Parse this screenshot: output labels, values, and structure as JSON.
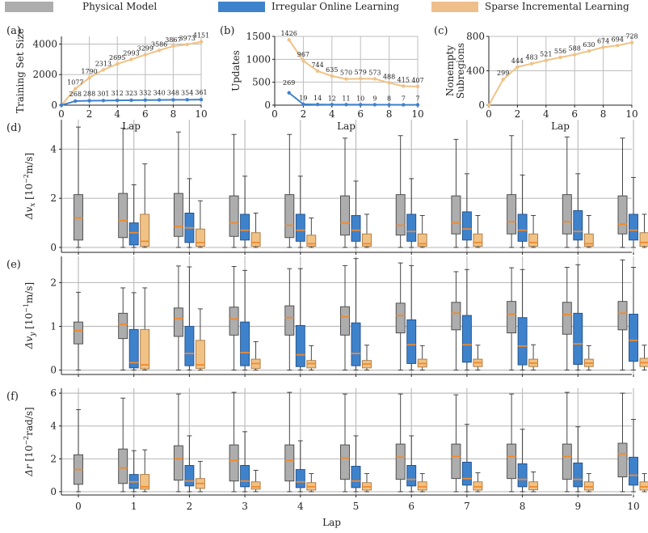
{
  "legend": [
    {
      "label": "Physical Model",
      "color": "#adadad",
      "border": "#555555"
    },
    {
      "label": "Irregular Online Learning",
      "color": "#3f82cc",
      "border": "#2a5a90"
    },
    {
      "label": "Sparse Incremental Learning",
      "color": "#eebf8a",
      "border": "#b98650"
    }
  ],
  "colors": {
    "blue": "#3f82cc",
    "orange": "#f0c286",
    "median": "#f08a2c",
    "grid": "#bdbdbd"
  },
  "chart_data": [
    {
      "id": "a",
      "type": "line",
      "panel_label": "(a)",
      "xlabel": "Lap",
      "ylabel": "Training Set Size",
      "xlim": [
        0,
        10
      ],
      "ylim": [
        0,
        4500
      ],
      "xticks": [
        0,
        2,
        4,
        6,
        8,
        10
      ],
      "yticks": [
        0,
        2000,
        4000
      ],
      "series": [
        {
          "name": "Sparse Incremental Learning",
          "color": "orange",
          "x": [
            0,
            1,
            2,
            3,
            4,
            5,
            6,
            7,
            8,
            9,
            10
          ],
          "values": [
            0,
            1077,
            1790,
            2313,
            2695,
            2993,
            3299,
            3586,
            3867,
            3973,
            4151
          ],
          "labels": [
            "",
            "1077",
            "1790",
            "2313",
            "2695",
            "2993",
            "3299",
            "3586",
            "3867",
            "3973",
            "4151"
          ]
        },
        {
          "name": "Irregular Online Learning",
          "color": "blue",
          "x": [
            0,
            1,
            2,
            3,
            4,
            5,
            6,
            7,
            8,
            9,
            10
          ],
          "values": [
            0,
            268,
            288,
            301,
            312,
            323,
            332,
            340,
            348,
            354,
            361
          ],
          "labels": [
            "",
            "268",
            "288",
            "301",
            "312",
            "323",
            "332",
            "340",
            "348",
            "354",
            "361"
          ]
        }
      ]
    },
    {
      "id": "b",
      "type": "line",
      "panel_label": "(b)",
      "xlabel": "Lap",
      "ylabel": "Updates",
      "xlim": [
        0,
        10
      ],
      "ylim": [
        0,
        1500
      ],
      "xticks": [
        0,
        2,
        4,
        6,
        8,
        10
      ],
      "yticks": [
        0,
        500,
        1000,
        1500
      ],
      "series": [
        {
          "name": "Sparse Incremental Learning",
          "color": "orange",
          "x": [
            1,
            2,
            3,
            4,
            5,
            6,
            7,
            8,
            9,
            10
          ],
          "values": [
            1426,
            967,
            744,
            635,
            570,
            579,
            573,
            488,
            415,
            407
          ],
          "labels": [
            "1426",
            "967",
            "744",
            "635",
            "570",
            "579",
            "573",
            "488",
            "415",
            "407"
          ]
        },
        {
          "name": "Irregular Online Learning",
          "color": "blue",
          "x": [
            1,
            2,
            3,
            4,
            5,
            6,
            7,
            8,
            9,
            10
          ],
          "values": [
            269,
            19,
            14,
            12,
            11,
            10,
            9,
            8,
            7,
            7
          ],
          "labels": [
            "269",
            "19",
            "14",
            "12",
            "11",
            "10",
            "9",
            "8",
            "7",
            "7"
          ]
        }
      ]
    },
    {
      "id": "c",
      "type": "line",
      "panel_label": "(c)",
      "xlabel": "Lap",
      "ylabel": "Nonempty Subregions",
      "xlim": [
        0,
        10
      ],
      "ylim": [
        0,
        800
      ],
      "xticks": [
        0,
        2,
        4,
        6,
        8,
        10
      ],
      "yticks": [
        0,
        400,
        800
      ],
      "series": [
        {
          "name": "Sparse Incremental Learning",
          "color": "orange",
          "x": [
            0,
            1,
            2,
            3,
            4,
            5,
            6,
            7,
            8,
            9,
            10
          ],
          "values": [
            0,
            299,
            444,
            483,
            521,
            556,
            588,
            630,
            674,
            694,
            728
          ],
          "labels": [
            "",
            "299",
            "444",
            "483",
            "521",
            "556",
            "588",
            "630",
            "674",
            "694",
            "728"
          ]
        }
      ]
    },
    {
      "id": "d",
      "type": "box",
      "panel_label": "(d)",
      "ylabel": "Δv_x [10^-2 m/s]",
      "ylabel_main": "Δv",
      "ylabel_sub": "x",
      "ylabel_unit": "[10",
      "ylabel_exp": "−2",
      "ylabel_tail": "m/s]",
      "ylim": [
        -0.2,
        5.2
      ],
      "yticks": [
        0,
        2,
        4
      ],
      "categories": [
        "0",
        "1",
        "2",
        "3",
        "4",
        "5",
        "6",
        "7",
        "8",
        "9",
        "10"
      ],
      "series": [
        {
          "name": "Physical Model",
          "boxes": [
            [
              0,
              0.3,
              1.2,
              2.15,
              4.9
            ],
            [
              0,
              0.4,
              1.1,
              2.2,
              4.85
            ],
            [
              0,
              0.45,
              0.85,
              2.2,
              4.7
            ],
            [
              0,
              0.45,
              1.0,
              2.1,
              4.6
            ],
            [
              0,
              0.4,
              0.9,
              2.15,
              4.6
            ],
            [
              0,
              0.5,
              1.0,
              2.1,
              4.45
            ],
            [
              0,
              0.5,
              0.9,
              2.15,
              4.55
            ],
            [
              0,
              0.55,
              1.0,
              2.1,
              4.4
            ],
            [
              0,
              0.55,
              1.05,
              2.15,
              4.55
            ],
            [
              0,
              0.55,
              1.05,
              2.15,
              4.5
            ],
            [
              0,
              0.55,
              0.95,
              2.1,
              4.45
            ]
          ]
        },
        {
          "name": "Irregular Online Learning",
          "boxes": [
            null,
            [
              0,
              0.1,
              0.6,
              1.0,
              2.55
            ],
            [
              0,
              0.2,
              0.8,
              1.4,
              2.8
            ],
            [
              0,
              0.3,
              0.7,
              1.35,
              2.9
            ],
            [
              0,
              0.25,
              0.7,
              1.35,
              2.9
            ],
            [
              0,
              0.25,
              0.7,
              1.3,
              2.7
            ],
            [
              0,
              0.25,
              0.65,
              1.35,
              2.8
            ],
            [
              0,
              0.3,
              0.75,
              1.45,
              3.0
            ],
            [
              0,
              0.25,
              0.7,
              1.35,
              2.95
            ],
            [
              0,
              0.3,
              0.65,
              1.5,
              3.0
            ],
            [
              0,
              0.3,
              0.7,
              1.35,
              2.85
            ]
          ]
        },
        {
          "name": "Sparse Incremental Learning",
          "boxes": [
            null,
            [
              0,
              0.05,
              0.25,
              1.35,
              3.4
            ],
            [
              0,
              0.05,
              0.2,
              0.75,
              1.9
            ],
            [
              0,
              0.05,
              0.2,
              0.6,
              1.4
            ],
            [
              0,
              0.05,
              0.15,
              0.5,
              1.2
            ],
            [
              0,
              0.05,
              0.15,
              0.55,
              1.35
            ],
            [
              0,
              0.05,
              0.15,
              0.55,
              1.3
            ],
            [
              0,
              0.05,
              0.2,
              0.55,
              1.3
            ],
            [
              0,
              0.05,
              0.2,
              0.55,
              1.3
            ],
            [
              0,
              0.05,
              0.15,
              0.55,
              1.3
            ],
            [
              0,
              0.05,
              0.2,
              0.6,
              1.35
            ]
          ]
        }
      ]
    },
    {
      "id": "e",
      "type": "box",
      "panel_label": "(e)",
      "ylabel": "Δv_y [10^-1 m/s]",
      "ylabel_main": "Δv",
      "ylabel_sub": "y",
      "ylabel_unit": "[10",
      "ylabel_exp": "−1",
      "ylabel_tail": "m/s]",
      "ylim": [
        -0.1,
        2.6
      ],
      "yticks": [
        0,
        1,
        2
      ],
      "categories": [
        "0",
        "1",
        "2",
        "3",
        "4",
        "5",
        "6",
        "7",
        "8",
        "9",
        "10"
      ],
      "series": [
        {
          "name": "Physical Model",
          "boxes": [
            [
              0,
              0.6,
              0.9,
              1.1,
              1.78
            ],
            [
              0,
              0.72,
              1.05,
              1.3,
              1.88
            ],
            [
              0,
              0.77,
              1.18,
              1.42,
              2.38
            ],
            [
              0,
              0.8,
              1.17,
              1.44,
              2.37
            ],
            [
              0,
              0.8,
              1.2,
              1.47,
              2.32
            ],
            [
              0,
              0.8,
              1.22,
              1.45,
              2.39
            ],
            [
              0,
              0.85,
              1.25,
              1.53,
              2.45
            ],
            [
              0,
              0.92,
              1.3,
              1.55,
              2.25
            ],
            [
              0,
              0.85,
              1.28,
              1.57,
              2.34
            ],
            [
              0,
              0.82,
              1.27,
              1.55,
              2.35
            ],
            [
              0,
              0.92,
              1.3,
              1.57,
              2.52
            ]
          ]
        },
        {
          "name": "Irregular Online Learning",
          "boxes": [
            null,
            [
              0,
              0.05,
              0.17,
              0.93,
              1.77
            ],
            [
              0,
              0.1,
              0.38,
              1.0,
              2.36
            ],
            [
              0,
              0.1,
              0.4,
              1.1,
              2.28
            ],
            [
              0,
              0.08,
              0.35,
              1.02,
              2.32
            ],
            [
              0,
              0.1,
              0.38,
              1.08,
              2.55
            ],
            [
              0,
              0.15,
              0.58,
              1.15,
              2.39
            ],
            [
              0,
              0.18,
              0.58,
              1.25,
              2.3
            ],
            [
              0,
              0.12,
              0.55,
              1.2,
              2.3
            ],
            [
              0,
              0.13,
              0.6,
              1.3,
              2.41
            ],
            [
              0,
              0.2,
              0.68,
              1.28,
              2.35
            ]
          ]
        },
        {
          "name": "Sparse Incremental Learning",
          "boxes": [
            null,
            [
              0,
              0.03,
              0.12,
              0.93,
              1.88
            ],
            [
              0,
              0.04,
              0.12,
              0.68,
              1.4
            ],
            [
              0,
              0.04,
              0.15,
              0.25,
              0.65
            ],
            [
              0,
              0.05,
              0.15,
              0.22,
              0.56
            ],
            [
              0,
              0.05,
              0.14,
              0.22,
              0.57
            ],
            [
              0,
              0.07,
              0.15,
              0.25,
              0.56
            ],
            [
              0,
              0.08,
              0.17,
              0.25,
              0.57
            ],
            [
              0,
              0.08,
              0.16,
              0.25,
              0.58
            ],
            [
              0,
              0.08,
              0.16,
              0.25,
              0.56
            ],
            [
              0,
              0.08,
              0.17,
              0.27,
              0.57
            ]
          ]
        }
      ]
    },
    {
      "id": "f",
      "type": "box",
      "panel_label": "(f)",
      "ylabel": "Δr [10^-2 rad/s]",
      "ylabel_main": "Δr",
      "ylabel_sub": "",
      "ylabel_unit": "[10",
      "ylabel_exp": "−2",
      "ylabel_tail": "rad/s]",
      "xlabel": "Lap",
      "ylim": [
        -0.2,
        6.3
      ],
      "yticks": [
        0,
        2,
        4,
        6
      ],
      "categories": [
        "0",
        "1",
        "2",
        "3",
        "4",
        "5",
        "6",
        "7",
        "8",
        "9",
        "10"
      ],
      "series": [
        {
          "name": "Physical Model",
          "boxes": [
            [
              0,
              0.45,
              1.35,
              2.25,
              5.0
            ],
            [
              0,
              0.5,
              1.45,
              2.6,
              5.7
            ],
            [
              0,
              0.7,
              2.0,
              2.8,
              5.95
            ],
            [
              0,
              0.65,
              1.9,
              2.85,
              6.05
            ],
            [
              0,
              0.65,
              1.9,
              2.85,
              6.05
            ],
            [
              0,
              0.75,
              2.05,
              2.85,
              5.95
            ],
            [
              0,
              0.75,
              2.1,
              2.9,
              5.95
            ],
            [
              0,
              0.8,
              2.15,
              2.9,
              5.9
            ],
            [
              0,
              0.8,
              2.15,
              2.9,
              5.95
            ],
            [
              0,
              0.75,
              2.15,
              2.9,
              6.05
            ],
            [
              0,
              0.9,
              2.3,
              2.95,
              6.0
            ]
          ]
        },
        {
          "name": "Irregular Online Learning",
          "boxes": [
            null,
            [
              0,
              0.2,
              0.6,
              1.05,
              2.5
            ],
            [
              0,
              0.35,
              0.65,
              1.6,
              3.4
            ],
            [
              0,
              0.3,
              0.65,
              1.6,
              3.65
            ],
            [
              0,
              0.25,
              0.6,
              1.35,
              3.1
            ],
            [
              0,
              0.25,
              0.65,
              1.55,
              3.4
            ],
            [
              0,
              0.35,
              0.75,
              1.6,
              3.4
            ],
            [
              0,
              0.4,
              0.8,
              1.8,
              4.1
            ],
            [
              0,
              0.3,
              0.75,
              1.7,
              3.8
            ],
            [
              0,
              0.3,
              0.75,
              1.75,
              3.95
            ],
            [
              0,
              0.4,
              1.0,
              2.1,
              4.4
            ]
          ]
        },
        {
          "name": "Sparse Incremental Learning",
          "boxes": [
            null,
            [
              0,
              0.15,
              0.3,
              1.05,
              2.55
            ],
            [
              0,
              0.2,
              0.5,
              0.8,
              1.85
            ],
            [
              0,
              0.15,
              0.3,
              0.6,
              1.3
            ],
            [
              0,
              0.1,
              0.3,
              0.55,
              1.1
            ],
            [
              0,
              0.1,
              0.3,
              0.55,
              1.1
            ],
            [
              0,
              0.1,
              0.3,
              0.6,
              1.1
            ],
            [
              0,
              0.1,
              0.3,
              0.6,
              1.15
            ],
            [
              0,
              0.12,
              0.3,
              0.6,
              1.2
            ],
            [
              0,
              0.1,
              0.3,
              0.6,
              1.1
            ],
            [
              0,
              0.1,
              0.3,
              0.6,
              1.1
            ]
          ]
        }
      ]
    }
  ]
}
